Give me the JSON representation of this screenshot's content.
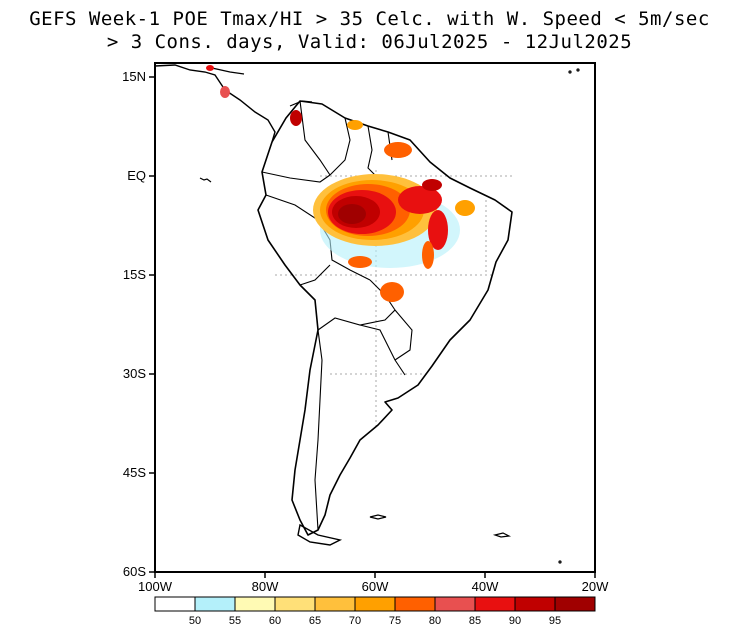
{
  "title_line1": "GEFS Week-1 POE Tmax/HI > 35 Celc. with W. Speed < 5m/sec",
  "title_line2": "> 3 Cons. days, Valid: 06Jul2025 - 12Jul2025",
  "lat_labels": [
    "15N",
    "EQ",
    "15S",
    "30S",
    "45S",
    "60S"
  ],
  "lon_labels": [
    "100W",
    "80W",
    "60W",
    "40W",
    "20W"
  ],
  "colorbar": {
    "colors": [
      "#ffffff",
      "#b4f0fa",
      "#fffab4",
      "#ffe078",
      "#ffc03c",
      "#ffa000",
      "#ff6000",
      "#e85050",
      "#e81010",
      "#c00000",
      "#a00000"
    ],
    "labels": [
      "50",
      "55",
      "60",
      "65",
      "70",
      "75",
      "80",
      "85",
      "90",
      "95"
    ]
  },
  "map": {
    "region": "South America",
    "lon_range": [
      -100,
      -20
    ],
    "lat_range": [
      -60,
      15
    ],
    "gridlines": "dotted"
  }
}
